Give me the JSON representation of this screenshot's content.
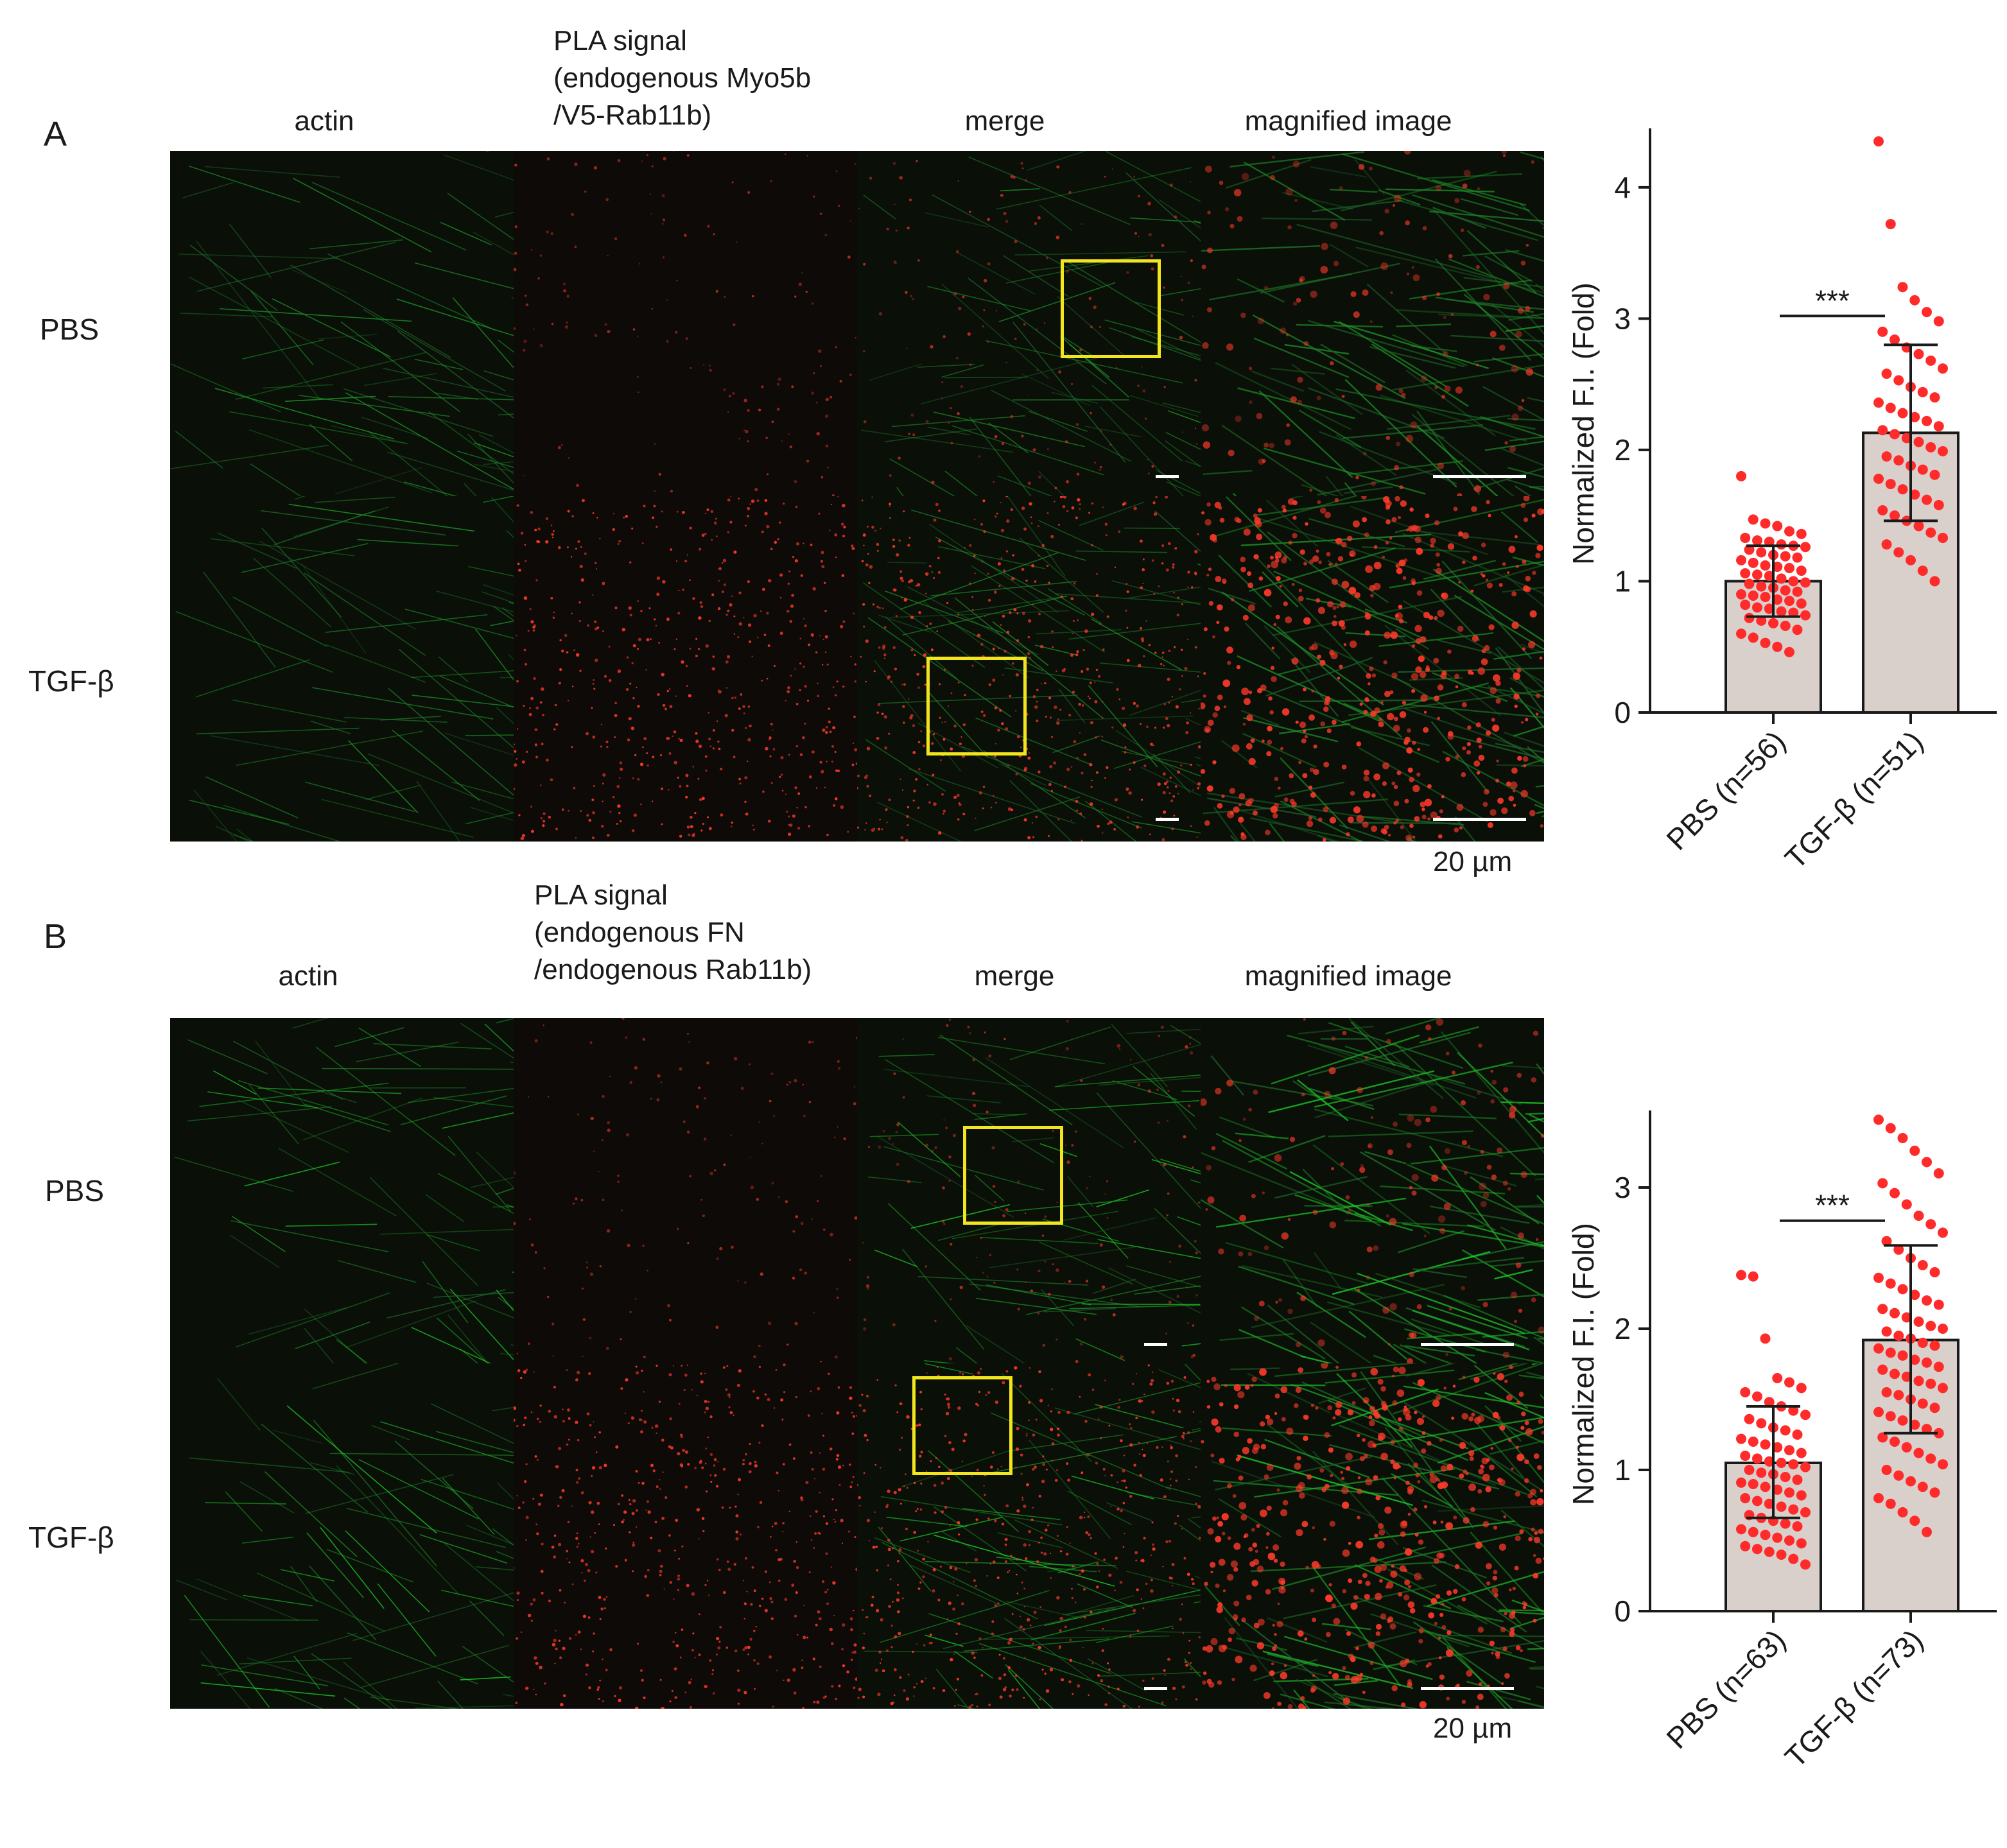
{
  "panelA": {
    "letter": "A",
    "headers": {
      "col1": "actin",
      "col2_lines": [
        "PLA signal",
        "(endogenous Myo5b",
        "/V5-Rab11b)"
      ],
      "col3": "merge",
      "col4": "magnified image"
    },
    "rows": [
      "PBS",
      "TGF-β"
    ],
    "scale_label": "20 µm",
    "chart_data": {
      "type": "bar",
      "categories": [
        "PBS (n=56)",
        "TGF-β (n=51)"
      ],
      "values": [
        1.0,
        2.13
      ],
      "error_bars": [
        [
          0.73,
          1.27
        ],
        [
          1.46,
          2.8
        ]
      ],
      "ylabel": "Normalized F.I. (Fold)",
      "ylim": [
        0,
        4.4
      ],
      "yticks": [
        0,
        1,
        2,
        3,
        4
      ],
      "significance": "***",
      "point_color": "#ff2a2a",
      "bar_color": "#d9d0cc",
      "points": [
        [
          1.8,
          1.47,
          1.44,
          1.42,
          1.38,
          1.36,
          1.33,
          1.31,
          1.3,
          1.28,
          1.27,
          1.26,
          1.24,
          1.22,
          1.2,
          1.19,
          1.18,
          1.16,
          1.14,
          1.12,
          1.11,
          1.1,
          1.08,
          1.06,
          1.05,
          1.04,
          1.02,
          1.0,
          0.99,
          0.98,
          0.96,
          0.95,
          0.93,
          0.92,
          0.9,
          0.89,
          0.88,
          0.86,
          0.85,
          0.83,
          0.82,
          0.8,
          0.79,
          0.77,
          0.76,
          0.74,
          0.72,
          0.7,
          0.68,
          0.66,
          0.63,
          0.6,
          0.57,
          0.53,
          0.5,
          0.46
        ],
        [
          4.35,
          3.72,
          3.24,
          3.14,
          3.05,
          2.98,
          2.9,
          2.84,
          2.78,
          2.73,
          2.68,
          2.62,
          2.58,
          2.53,
          2.48,
          2.44,
          2.4,
          2.36,
          2.32,
          2.28,
          2.25,
          2.22,
          2.18,
          2.15,
          2.12,
          2.09,
          2.06,
          2.02,
          1.99,
          1.95,
          1.92,
          1.88,
          1.85,
          1.81,
          1.78,
          1.74,
          1.7,
          1.66,
          1.62,
          1.58,
          1.54,
          1.5,
          1.46,
          1.42,
          1.37,
          1.33,
          1.28,
          1.22,
          1.16,
          1.08,
          1.0
        ]
      ]
    }
  },
  "panelB": {
    "letter": "B",
    "headers": {
      "col1": "actin",
      "col2_lines": [
        "PLA signal",
        "(endogenous FN",
        "/endogenous Rab11b)"
      ],
      "col3": "merge",
      "col4": "magnified image"
    },
    "rows": [
      "PBS",
      "TGF-β"
    ],
    "scale_label": "20 µm",
    "chart_data": {
      "type": "bar",
      "categories": [
        "PBS (n=63)",
        "TGF-β (n=73)"
      ],
      "values": [
        1.05,
        1.92
      ],
      "error_bars": [
        [
          0.66,
          1.45
        ],
        [
          1.26,
          2.59
        ]
      ],
      "ylabel": "Normalized F.I. (Fold)",
      "ylim": [
        0,
        3.5
      ],
      "yticks": [
        0,
        1,
        2,
        3
      ],
      "significance": "***",
      "point_color": "#ff2a2a",
      "bar_color": "#d9d0cc",
      "points": [
        [
          2.38,
          2.37,
          1.93,
          1.65,
          1.62,
          1.58,
          1.55,
          1.52,
          1.48,
          1.45,
          1.42,
          1.39,
          1.36,
          1.33,
          1.3,
          1.28,
          1.25,
          1.22,
          1.2,
          1.18,
          1.16,
          1.14,
          1.12,
          1.1,
          1.08,
          1.06,
          1.05,
          1.04,
          1.02,
          1.0,
          0.98,
          0.97,
          0.95,
          0.93,
          0.91,
          0.9,
          0.88,
          0.86,
          0.84,
          0.82,
          0.8,
          0.78,
          0.76,
          0.74,
          0.72,
          0.7,
          0.68,
          0.66,
          0.64,
          0.62,
          0.6,
          0.58,
          0.56,
          0.54,
          0.52,
          0.5,
          0.48,
          0.46,
          0.44,
          0.42,
          0.4,
          0.37,
          0.33
        ],
        [
          3.48,
          3.42,
          3.35,
          3.26,
          3.18,
          3.1,
          3.03,
          2.96,
          2.88,
          2.8,
          2.74,
          2.68,
          2.62,
          2.56,
          2.5,
          2.45,
          2.4,
          2.36,
          2.32,
          2.28,
          2.24,
          2.2,
          2.17,
          2.14,
          2.11,
          2.08,
          2.05,
          2.02,
          2.0,
          1.98,
          1.95,
          1.93,
          1.9,
          1.88,
          1.86,
          1.83,
          1.81,
          1.78,
          1.76,
          1.73,
          1.71,
          1.68,
          1.66,
          1.63,
          1.61,
          1.58,
          1.55,
          1.53,
          1.5,
          1.47,
          1.44,
          1.41,
          1.38,
          1.35,
          1.32,
          1.29,
          1.26,
          1.23,
          1.2,
          1.16,
          1.12,
          1.08,
          1.04,
          1.0,
          0.96,
          0.92,
          0.88,
          0.84,
          0.8,
          0.76,
          0.7,
          0.64,
          0.56
        ]
      ]
    }
  }
}
